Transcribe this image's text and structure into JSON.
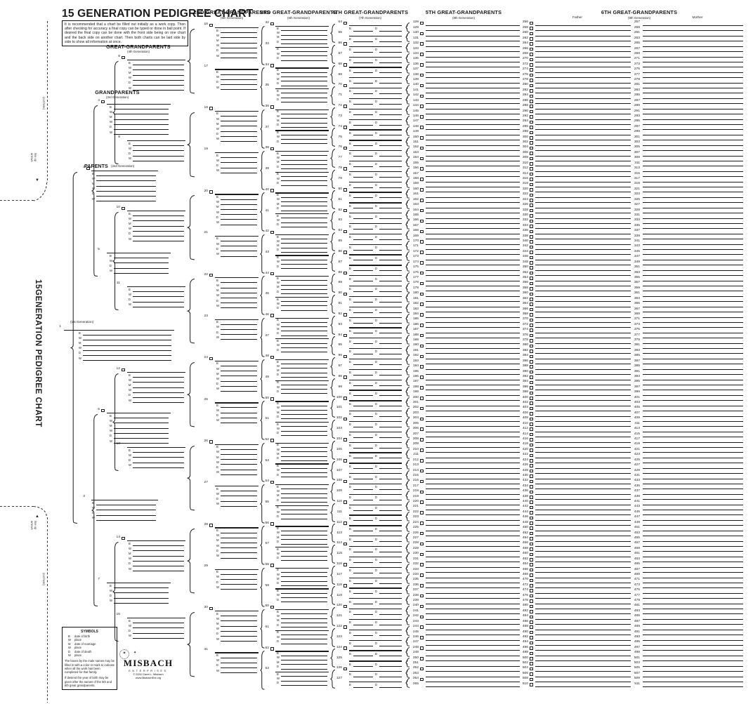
{
  "title": "15 GENERATION PEDIGREE CHART",
  "vertical_title": "15GENERATION PEDIGREE CHART",
  "instructions": "It is recommended that a chart be filled out initially as a work copy. Then after checking for accuracy a final copy can be typed or done in ball point. If desired the final copy can be done with the front side being on one chart and the back side on another chart. Then both charts can be laid side by side to show all information at once.",
  "gen1_label": "(1st Generation)",
  "generation_headers": [
    {
      "title": "PARENTS",
      "subtitle": "(2nd Generation)"
    },
    {
      "title": "GRANDPARENTS",
      "subtitle": "(3rd Generation)"
    },
    {
      "title": "GREAT-GRANDPARENTS",
      "subtitle": "(4th Generation)"
    },
    {
      "title": "2ND GREAT-GRANDPARENTS",
      "subtitle": "(5th Generation)"
    },
    {
      "title": "3RD GREAT-GRANDPARENTS",
      "subtitle": "(6th Generation)"
    },
    {
      "title": "4TH GREAT-GRANDPARENTS",
      "subtitle": "(7th Generation)"
    },
    {
      "title": "5TH GREAT-GRANDPARENTS",
      "subtitle": "(8th Generation)"
    },
    {
      "title": "6TH GREAT-GRANDPARENTS",
      "subtitle": "(9th Generation)",
      "father_label": "Father",
      "mother_label": "Mother"
    }
  ],
  "fields": {
    "male": [
      "B",
      "W",
      "M",
      "W",
      "D",
      "W"
    ],
    "female": [
      "B",
      "W",
      "D",
      "W"
    ],
    "gen6_male": [
      "B",
      "W",
      "M",
      "D"
    ],
    "gen6_female": [
      "B",
      "W",
      "D"
    ],
    "gen7": [
      "B",
      "D"
    ]
  },
  "entries": {
    "generations": [
      {
        "gen": 1,
        "from": 1,
        "to": 1
      },
      {
        "gen": 2,
        "from": 2,
        "to": 3
      },
      {
        "gen": 3,
        "from": 4,
        "to": 7
      },
      {
        "gen": 4,
        "from": 8,
        "to": 15
      },
      {
        "gen": 5,
        "from": 16,
        "to": 31
      },
      {
        "gen": 6,
        "from": 32,
        "to": 63
      },
      {
        "gen": 7,
        "from": 64,
        "to": 127
      },
      {
        "gen": 8,
        "from": 128,
        "to": 255
      },
      {
        "gen": 9,
        "from": 256,
        "to": 511
      }
    ]
  },
  "symbols": {
    "title": "SYMBOLS",
    "rows": [
      {
        "key": "B",
        "desc": "date of birth"
      },
      {
        "key": "W",
        "desc": "place"
      },
      {
        "key": "M",
        "desc": "date of marriage"
      },
      {
        "key": "W",
        "desc": "place"
      },
      {
        "key": "D",
        "desc": "date of death"
      },
      {
        "key": "W",
        "desc": "place"
      }
    ],
    "note1": "The boxes by the male names may be filled in with a color or mark to indicate when all the work has been completed for that family.",
    "note2": "If desired the year of birth may be given after the names of the 5th and 6th great grandparents."
  },
  "fold_marks": {
    "cut_label": "(cut here)",
    "join_label_1": "line up",
    "join_label_2": "arrows"
  },
  "logo": {
    "name": "MISBACH",
    "subtitle": "ENTERPRISES",
    "copyright": "© 2002 Garet L. Misbach",
    "website": "www.MisbachEnt.org"
  },
  "colors": {
    "ink": "#1b1b1b",
    "paper": "#ffffff"
  }
}
